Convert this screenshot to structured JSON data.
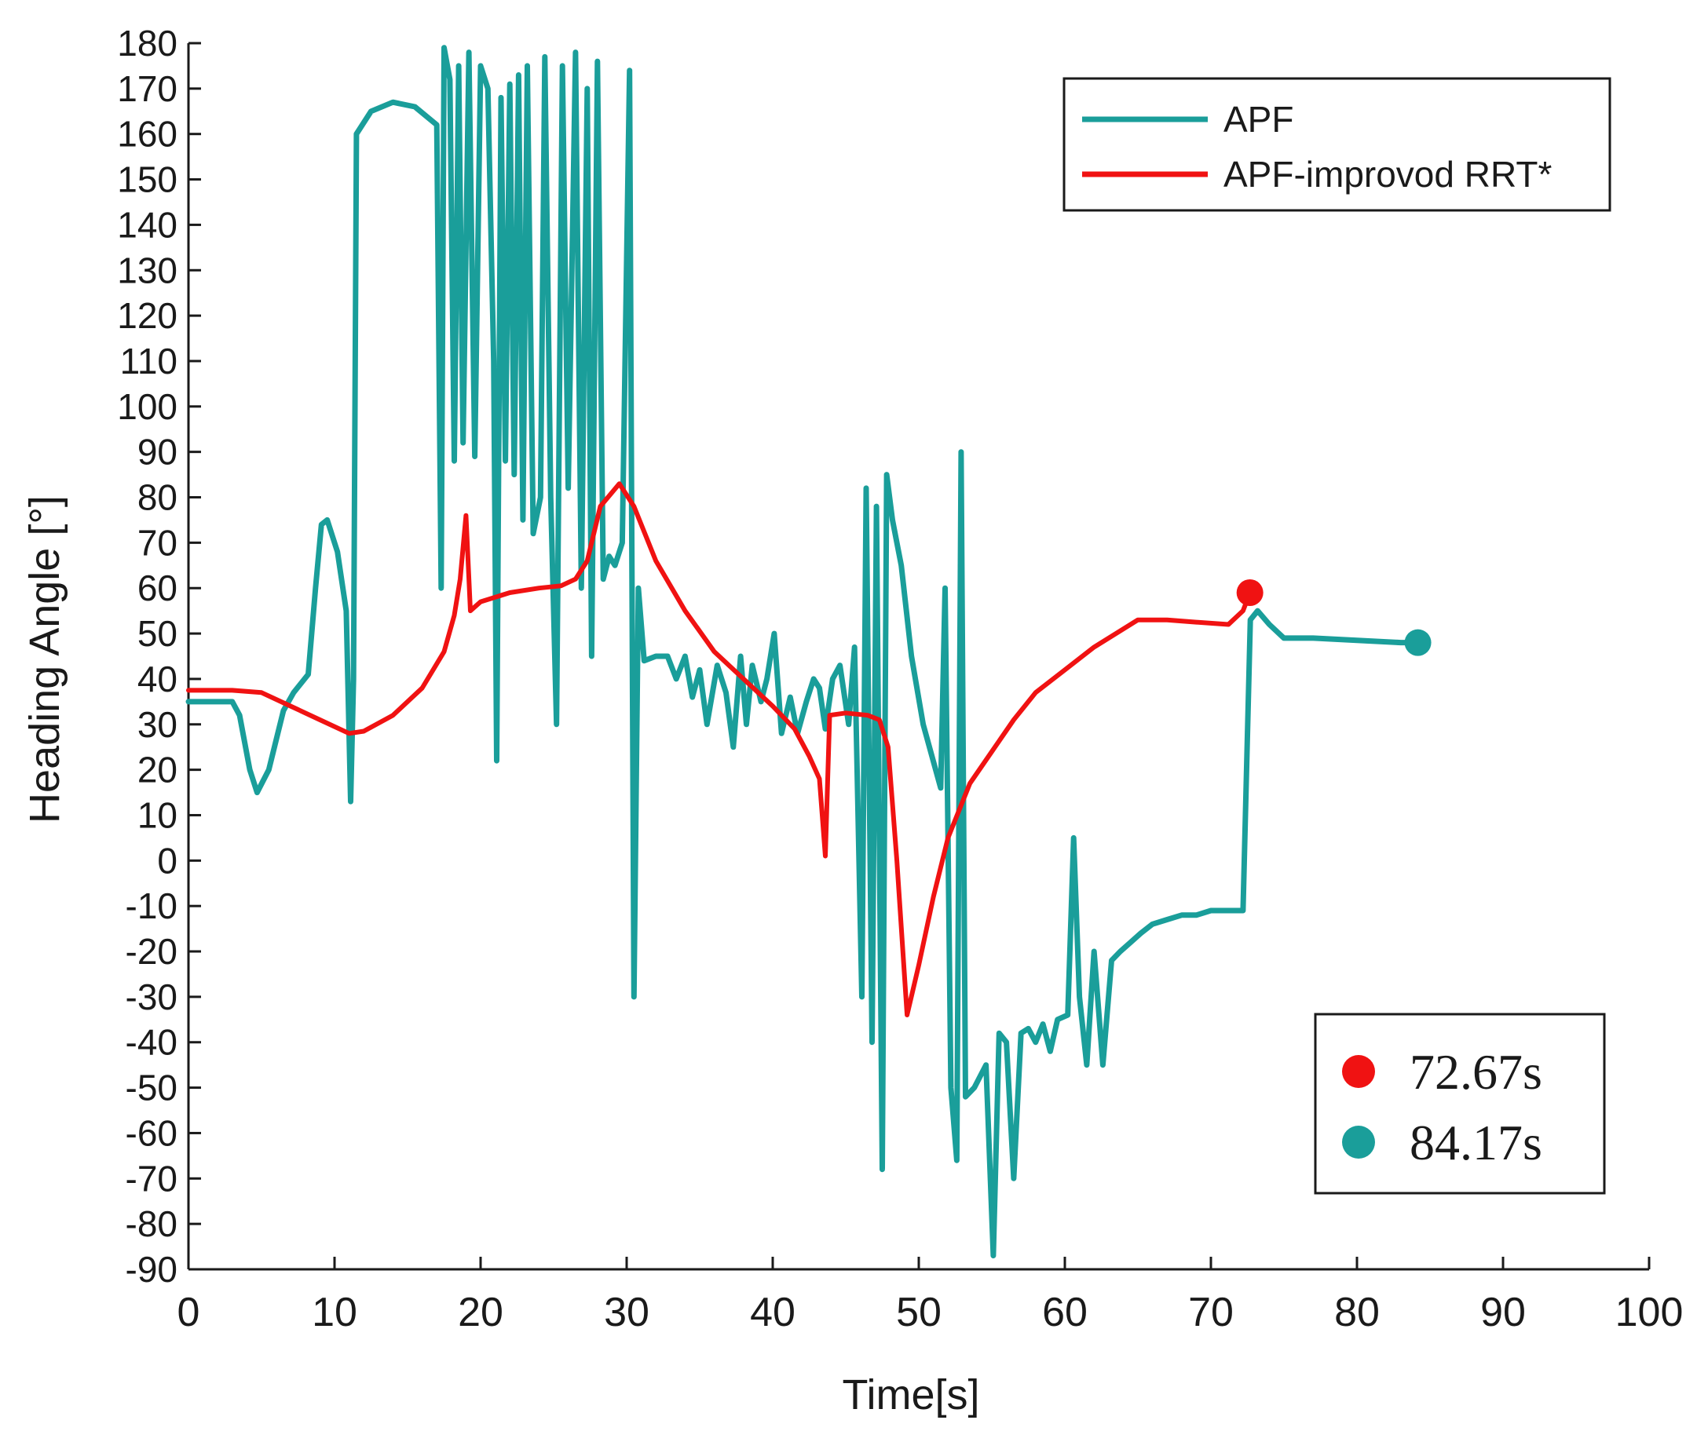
{
  "chart_data": {
    "type": "line",
    "title": "",
    "xlabel": "Time[s]",
    "ylabel": "Heading Angle [°]",
    "xlim": [
      0,
      100
    ],
    "ylim": [
      -90,
      180
    ],
    "xticks": [
      0,
      10,
      20,
      30,
      40,
      50,
      60,
      70,
      80,
      90,
      100
    ],
    "yticks": [
      -90,
      -80,
      -70,
      -60,
      -50,
      -40,
      -30,
      -20,
      -10,
      0,
      10,
      20,
      30,
      40,
      50,
      60,
      70,
      80,
      90,
      100,
      110,
      120,
      130,
      140,
      150,
      160,
      170,
      180
    ],
    "grid": false,
    "legend_position": "top-right",
    "series": [
      {
        "name": "APF",
        "color": "#1a9e9a",
        "points": [
          [
            0,
            35
          ],
          [
            3,
            35
          ],
          [
            3.5,
            32
          ],
          [
            4.2,
            20
          ],
          [
            4.7,
            15
          ],
          [
            5.5,
            20
          ],
          [
            6.5,
            33
          ],
          [
            7.2,
            37
          ],
          [
            8.2,
            41
          ],
          [
            8.7,
            60
          ],
          [
            9.1,
            74
          ],
          [
            9.5,
            75
          ],
          [
            10.2,
            68
          ],
          [
            10.8,
            55
          ],
          [
            11.1,
            13
          ],
          [
            11.3,
            40
          ],
          [
            11.5,
            160
          ],
          [
            12.5,
            165
          ],
          [
            14,
            167
          ],
          [
            15.5,
            166
          ],
          [
            17,
            162
          ],
          [
            17.3,
            60
          ],
          [
            17.5,
            179
          ],
          [
            17.9,
            172
          ],
          [
            18.2,
            88
          ],
          [
            18.5,
            175
          ],
          [
            18.8,
            92
          ],
          [
            19.2,
            178
          ],
          [
            19.6,
            89
          ],
          [
            20,
            175
          ],
          [
            20.5,
            170
          ],
          [
            20.9,
            110
          ],
          [
            21.1,
            22
          ],
          [
            21.4,
            168
          ],
          [
            21.7,
            88
          ],
          [
            22,
            171
          ],
          [
            22.3,
            85
          ],
          [
            22.6,
            173
          ],
          [
            22.9,
            75
          ],
          [
            23.2,
            175
          ],
          [
            23.6,
            72
          ],
          [
            24.1,
            80
          ],
          [
            24.4,
            177
          ],
          [
            24.8,
            80
          ],
          [
            25.2,
            30
          ],
          [
            25.6,
            175
          ],
          [
            26,
            82
          ],
          [
            26.5,
            178
          ],
          [
            26.9,
            60
          ],
          [
            27.3,
            170
          ],
          [
            27.6,
            45
          ],
          [
            28,
            176
          ],
          [
            28.4,
            62
          ],
          [
            28.8,
            67
          ],
          [
            29.2,
            65
          ],
          [
            29.7,
            70
          ],
          [
            30.2,
            174
          ],
          [
            30.5,
            -30
          ],
          [
            30.8,
            60
          ],
          [
            31.2,
            44
          ],
          [
            32,
            45
          ],
          [
            32.8,
            45
          ],
          [
            33.4,
            40
          ],
          [
            34,
            45
          ],
          [
            34.5,
            36
          ],
          [
            35,
            42
          ],
          [
            35.5,
            30
          ],
          [
            36.2,
            43
          ],
          [
            36.8,
            37
          ],
          [
            37.3,
            25
          ],
          [
            37.8,
            45
          ],
          [
            38.2,
            30
          ],
          [
            38.6,
            43
          ],
          [
            39.2,
            35
          ],
          [
            39.6,
            40
          ],
          [
            40.1,
            50
          ],
          [
            40.6,
            28
          ],
          [
            41.2,
            36
          ],
          [
            41.7,
            28
          ],
          [
            42.3,
            35
          ],
          [
            42.8,
            40
          ],
          [
            43.2,
            38
          ],
          [
            43.6,
            29
          ],
          [
            44.1,
            40
          ],
          [
            44.6,
            43
          ],
          [
            45.2,
            30
          ],
          [
            45.6,
            47
          ],
          [
            46.1,
            -30
          ],
          [
            46.4,
            82
          ],
          [
            46.8,
            -40
          ],
          [
            47.1,
            78
          ],
          [
            47.5,
            -68
          ],
          [
            47.8,
            85
          ],
          [
            48.2,
            75
          ],
          [
            48.8,
            65
          ],
          [
            49.5,
            45
          ],
          [
            50.3,
            30
          ],
          [
            51.5,
            16
          ],
          [
            51.8,
            60
          ],
          [
            52.2,
            -50
          ],
          [
            52.6,
            -66
          ],
          [
            52.9,
            90
          ],
          [
            53.2,
            -52
          ],
          [
            53.8,
            -50
          ],
          [
            54.6,
            -45
          ],
          [
            55.1,
            -87
          ],
          [
            55.5,
            -38
          ],
          [
            56,
            -40
          ],
          [
            56.5,
            -70
          ],
          [
            57,
            -38
          ],
          [
            57.5,
            -37
          ],
          [
            58,
            -40
          ],
          [
            58.5,
            -36
          ],
          [
            59,
            -42
          ],
          [
            59.5,
            -35
          ],
          [
            60.2,
            -34
          ],
          [
            60.6,
            5
          ],
          [
            61,
            -30
          ],
          [
            61.5,
            -45
          ],
          [
            62,
            -20
          ],
          [
            62.6,
            -45
          ],
          [
            63.2,
            -22
          ],
          [
            63.8,
            -20
          ],
          [
            64.5,
            -18
          ],
          [
            65.2,
            -16
          ],
          [
            66,
            -14
          ],
          [
            67,
            -13
          ],
          [
            68,
            -12
          ],
          [
            69,
            -12
          ],
          [
            70,
            -11
          ],
          [
            71,
            -11
          ],
          [
            72.2,
            -11
          ],
          [
            72.7,
            53
          ],
          [
            73.2,
            55
          ],
          [
            74,
            52
          ],
          [
            75,
            49
          ],
          [
            77,
            49
          ],
          [
            80,
            48.5
          ],
          [
            83,
            48
          ],
          [
            84.2,
            48
          ]
        ]
      },
      {
        "name": "APF-improvod RRT*",
        "color": "#f01212",
        "points": [
          [
            0,
            37.5
          ],
          [
            3,
            37.5
          ],
          [
            5,
            37
          ],
          [
            7,
            34
          ],
          [
            9,
            31
          ],
          [
            11,
            28
          ],
          [
            12,
            28.5
          ],
          [
            14,
            32
          ],
          [
            16,
            38
          ],
          [
            17.5,
            46
          ],
          [
            18.2,
            54
          ],
          [
            18.6,
            62
          ],
          [
            19,
            76
          ],
          [
            19.3,
            55
          ],
          [
            20,
            57
          ],
          [
            22,
            59
          ],
          [
            24,
            60
          ],
          [
            25.5,
            60.5
          ],
          [
            26.5,
            62
          ],
          [
            27.3,
            66
          ],
          [
            28.2,
            78
          ],
          [
            29.5,
            83
          ],
          [
            30.5,
            78
          ],
          [
            32,
            66
          ],
          [
            34,
            55
          ],
          [
            36,
            46
          ],
          [
            38,
            40
          ],
          [
            40,
            34
          ],
          [
            41.5,
            29
          ],
          [
            42.5,
            23
          ],
          [
            43.2,
            18
          ],
          [
            43.6,
            1
          ],
          [
            43.9,
            32
          ],
          [
            45,
            32.5
          ],
          [
            46.5,
            32
          ],
          [
            47.3,
            31
          ],
          [
            47.9,
            25
          ],
          [
            48.5,
            0
          ],
          [
            49.2,
            -34
          ],
          [
            50,
            -23
          ],
          [
            51,
            -8
          ],
          [
            52,
            5
          ],
          [
            53.5,
            17
          ],
          [
            55,
            24
          ],
          [
            56.5,
            31
          ],
          [
            58,
            37
          ],
          [
            60,
            42
          ],
          [
            62,
            47
          ],
          [
            63.5,
            50
          ],
          [
            65,
            53
          ],
          [
            67,
            53
          ],
          [
            69,
            52.5
          ],
          [
            71.2,
            52
          ],
          [
            72.2,
            55
          ],
          [
            72.67,
            59
          ]
        ]
      }
    ],
    "end_markers": [
      {
        "label": "72.67s",
        "x": 72.67,
        "y": 59,
        "color": "#f01212"
      },
      {
        "label": "84.17s",
        "x": 84.17,
        "y": 48,
        "color": "#1a9e9a"
      }
    ]
  }
}
